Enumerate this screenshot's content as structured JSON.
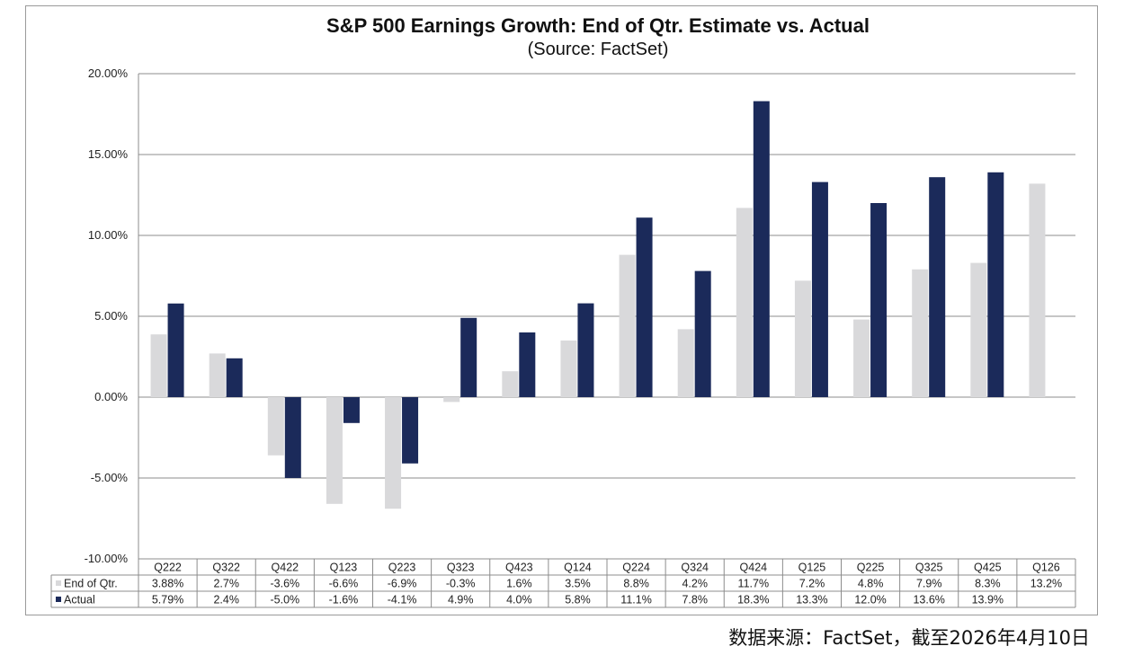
{
  "chart_data": {
    "type": "bar",
    "title": "S&P 500 Earnings Growth: End of Qtr. Estimate vs. Actual",
    "subtitle": "(Source: FactSet)",
    "categories": [
      "Q222",
      "Q322",
      "Q422",
      "Q123",
      "Q223",
      "Q323",
      "Q423",
      "Q124",
      "Q224",
      "Q324",
      "Q424",
      "Q125",
      "Q225",
      "Q325",
      "Q425",
      "Q126"
    ],
    "series": [
      {
        "name": "End of Qtr.",
        "color": "#d9d9db",
        "values": [
          3.88,
          2.7,
          -3.6,
          -6.6,
          -6.9,
          -0.3,
          1.6,
          3.5,
          8.8,
          4.2,
          11.7,
          7.2,
          4.8,
          7.9,
          8.3,
          13.2
        ],
        "labels": [
          "3.88%",
          "2.7%",
          "-3.6%",
          "-6.6%",
          "-6.9%",
          "-0.3%",
          "1.6%",
          "3.5%",
          "8.8%",
          "4.2%",
          "11.7%",
          "7.2%",
          "4.8%",
          "7.9%",
          "8.3%",
          "13.2%"
        ]
      },
      {
        "name": "Actual",
        "color": "#1b2a5a",
        "values": [
          5.79,
          2.4,
          -5.0,
          -1.6,
          -4.1,
          4.9,
          4.0,
          5.8,
          11.1,
          7.8,
          18.3,
          13.3,
          12.0,
          13.6,
          13.9,
          null
        ],
        "labels": [
          "5.79%",
          "2.4%",
          "-5.0%",
          "-1.6%",
          "-4.1%",
          "4.9%",
          "4.0%",
          "5.8%",
          "11.1%",
          "7.8%",
          "18.3%",
          "13.3%",
          "12.0%",
          "13.6%",
          "13.9%",
          ""
        ]
      }
    ],
    "ylim": [
      -10,
      20
    ],
    "yticks": [
      -10,
      -5,
      0,
      5,
      10,
      15,
      20
    ],
    "ytick_labels": [
      "-10.00%",
      "-5.00%",
      "0.00%",
      "5.00%",
      "10.00%",
      "15.00%",
      "20.00%"
    ],
    "grid": true,
    "legend": "data-table"
  },
  "footer": {
    "source_note": "数据来源：FactSet，截至2026年4月10日"
  }
}
